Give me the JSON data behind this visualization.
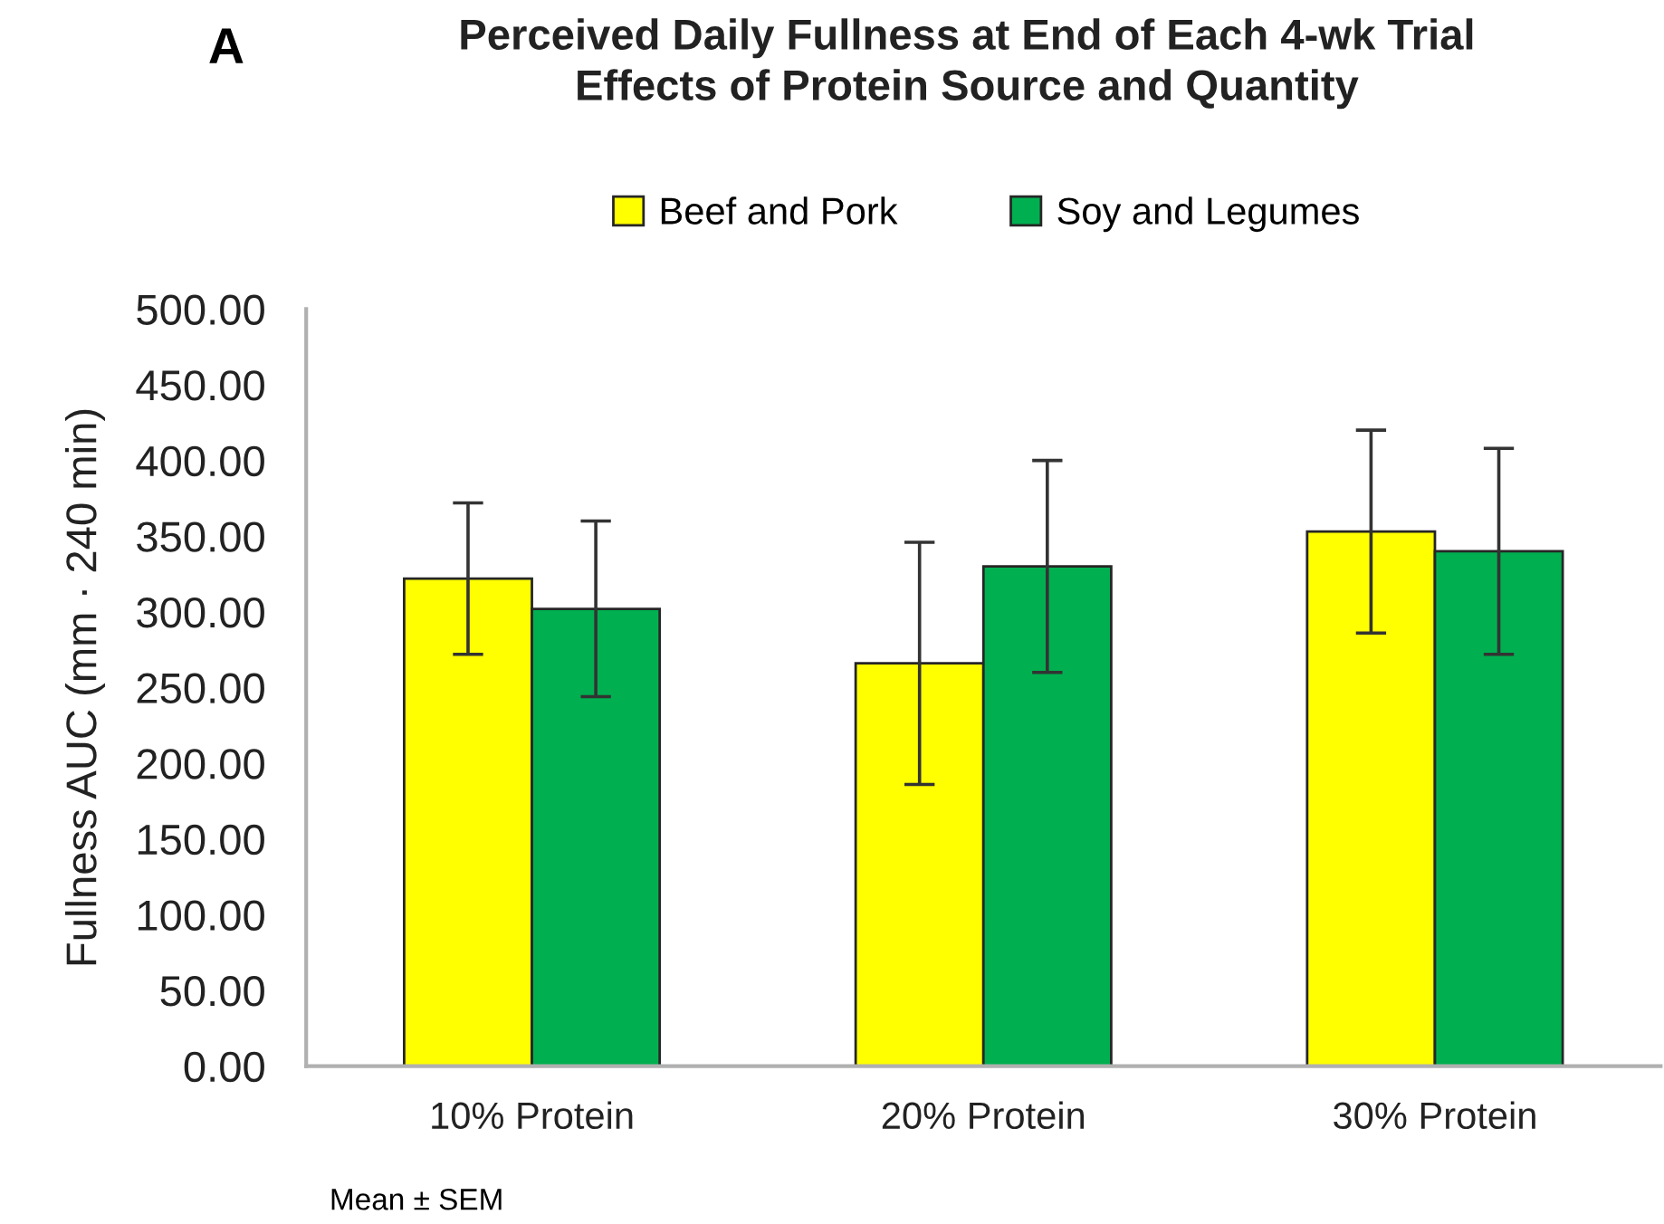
{
  "chart_data": {
    "type": "bar",
    "title": "Perceived Daily Fullness at End of Each 4-wk Trial\nEffects of Protein Source and Quantity",
    "ylabel": "Fullness AUC (mm · 240 min)",
    "categories": [
      "10% Protein",
      "20% Protein",
      "30% Protein"
    ],
    "series": [
      {
        "name": "Beef and Pork",
        "color": "#ffff00",
        "values": [
          322,
          266,
          353
        ],
        "errors": [
          50,
          80,
          67
        ]
      },
      {
        "name": "Soy and Legumes",
        "color": "#00b050",
        "values": [
          302,
          330,
          340
        ],
        "errors": [
          58,
          70,
          68
        ]
      }
    ],
    "ylim": [
      0,
      500
    ],
    "yticks": [
      {
        "value": 0,
        "label": "0.00"
      },
      {
        "value": 50,
        "label": "50.00"
      },
      {
        "value": 100,
        "label": "100.00"
      },
      {
        "value": 150,
        "label": "150.00"
      },
      {
        "value": 200,
        "label": "200.00"
      },
      {
        "value": 250,
        "label": "250.00"
      },
      {
        "value": 300,
        "label": "300.00"
      },
      {
        "value": 350,
        "label": "350.00"
      },
      {
        "value": 400,
        "label": "400.00"
      },
      {
        "value": 450,
        "label": "450.00"
      },
      {
        "value": 500,
        "label": "500.00"
      }
    ],
    "legend": "top",
    "annotations": [
      "A",
      "Mean ± SEM"
    ]
  }
}
